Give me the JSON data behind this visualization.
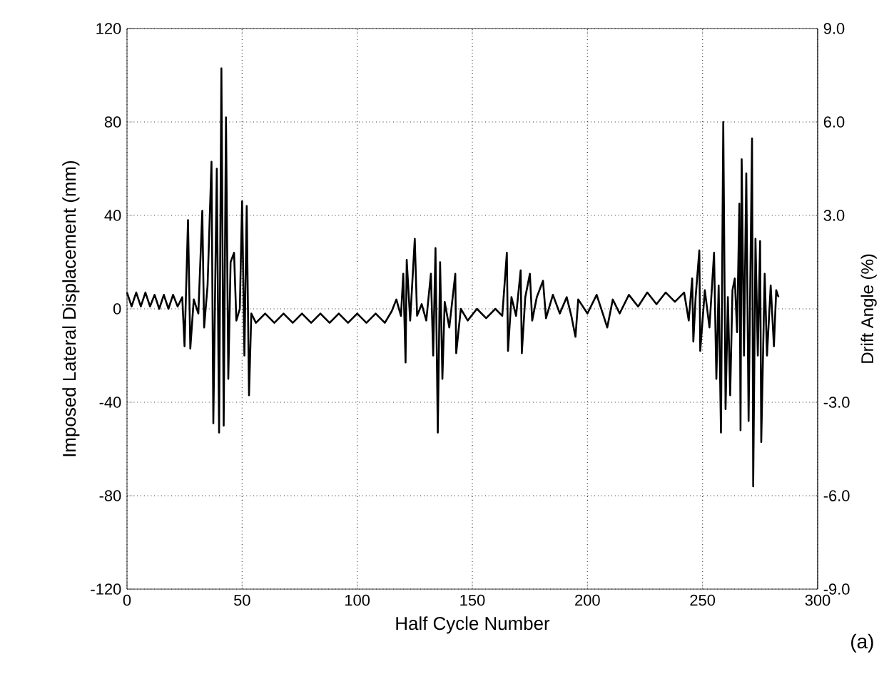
{
  "chart_data": {
    "type": "line",
    "xlabel": "Half Cycle Number",
    "ylabel": "Imposed Lateral Displacement (mm)",
    "y2label": "Drift Angle (%)",
    "xlim": [
      0,
      300
    ],
    "xticks": [
      0,
      50,
      100,
      150,
      200,
      250,
      300
    ],
    "ylim": [
      -120,
      120
    ],
    "yticks": [
      -120,
      -80,
      -40,
      0,
      40,
      80,
      120
    ],
    "y2lim": [
      -9,
      9
    ],
    "y2ticks": [
      {
        "value": -9,
        "label": "-9.0"
      },
      {
        "value": -6,
        "label": "-6.0"
      },
      {
        "value": -3,
        "label": "-3.0"
      },
      {
        "value": 3,
        "label": "3.0"
      },
      {
        "value": 6,
        "label": "6.0"
      },
      {
        "value": 9,
        "label": "9.0"
      }
    ],
    "grid": true,
    "line_style": "solid",
    "marker": "none",
    "annotations": [
      "(a)"
    ],
    "series": [
      {
        "color": "#000000",
        "x": [
          0,
          2,
          4,
          6,
          8,
          10,
          12,
          14,
          16,
          18,
          20,
          22,
          24,
          25,
          26.5,
          27.5,
          29,
          31,
          32.7,
          33.5,
          35,
          36.7,
          37.5,
          39,
          40,
          41,
          42,
          43,
          44,
          45,
          46.5,
          47.5,
          49,
          50,
          51,
          52,
          53,
          54,
          56,
          60,
          64,
          68,
          72,
          76,
          80,
          84,
          88,
          92,
          96,
          100,
          104,
          108,
          112,
          115,
          117,
          119,
          120,
          121,
          121.5,
          123,
          125,
          126,
          128,
          130,
          132,
          133,
          134,
          135,
          136,
          137,
          138,
          140,
          142.6,
          143,
          145,
          148,
          152,
          156,
          160,
          163,
          165,
          165.5,
          167,
          169,
          171,
          171.5,
          173,
          175,
          176,
          178,
          180.7,
          182,
          185,
          188,
          191,
          193,
          194.8,
          196,
          200,
          204,
          207,
          208.6,
          211,
          214,
          218,
          222,
          226,
          230,
          234,
          238,
          242,
          244,
          245.5,
          246,
          247,
          248.6,
          249,
          251,
          253,
          255,
          256,
          257,
          258,
          259,
          260,
          261,
          262,
          263,
          264,
          265,
          266,
          266.5,
          267,
          268,
          269,
          270,
          271.5,
          272,
          273,
          274,
          275,
          275.5,
          277,
          278,
          279.6,
          281,
          282,
          283
        ],
        "values": [
          7,
          1,
          7,
          1,
          7,
          1,
          6,
          0,
          6,
          0,
          6,
          1,
          5,
          -16,
          38,
          -17,
          4,
          -2,
          42,
          -8,
          10,
          63,
          -49,
          60,
          -53,
          103,
          -50,
          82,
          -30,
          20,
          24,
          -5,
          0,
          46,
          -20,
          44,
          -37,
          -2,
          -6,
          -2,
          -6,
          -2,
          -6,
          -2,
          -6,
          -2,
          -6,
          -2,
          -6,
          -2,
          -6,
          -2,
          -6,
          -1,
          4,
          -3,
          15,
          -23,
          21,
          -5,
          30,
          -3,
          2,
          -5,
          15,
          -20,
          26,
          -53,
          20,
          -30,
          3,
          -8,
          15,
          -19,
          0,
          -5,
          0,
          -4,
          0,
          -3,
          24,
          -18,
          5,
          -3,
          16.5,
          -19,
          5,
          15,
          -5,
          5,
          12,
          -4,
          6,
          -2,
          5,
          -3,
          -12,
          4,
          -2,
          6,
          -3,
          -8,
          4,
          -2,
          6,
          1,
          7,
          2,
          7,
          3,
          7,
          -5,
          13,
          -14,
          5,
          25,
          -18,
          8,
          -8,
          24,
          -30,
          10,
          -53,
          80,
          -43,
          5,
          -37,
          8,
          13,
          -10,
          45,
          -52,
          64,
          -20,
          58,
          -48,
          73,
          -76,
          30,
          -20,
          29,
          -57,
          15,
          -20,
          10,
          -16,
          8,
          5
        ]
      }
    ]
  }
}
